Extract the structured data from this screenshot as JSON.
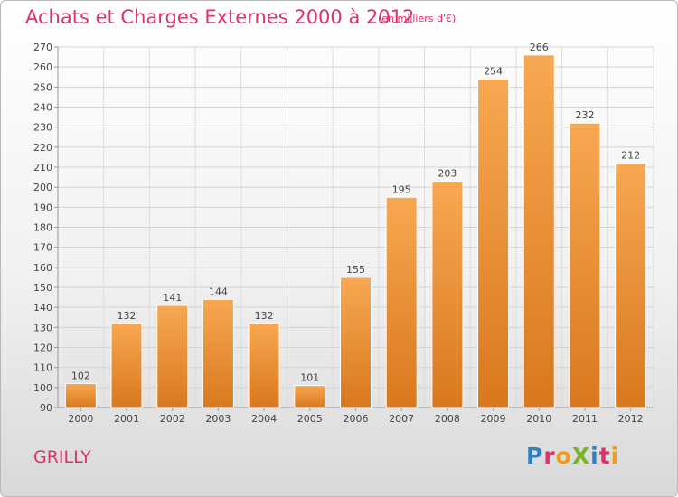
{
  "title": "Achats et Charges Externes 2000 à 2012",
  "unit": "(en milliers d'€)",
  "place": "GRILLY",
  "logo": {
    "text": "ProXiti",
    "colors": [
      "#2f7ec2",
      "#e0306a",
      "#f09a1e",
      "#7ab428",
      "#2f7ec2",
      "#e0306a",
      "#f09a1e"
    ]
  },
  "colors": {
    "bar_light": "#f7a852",
    "bar_dark": "#d9781e",
    "title": "#e0306a"
  },
  "chart_data": {
    "type": "bar",
    "categories": [
      "2000",
      "2001",
      "2002",
      "2003",
      "2004",
      "2005",
      "2006",
      "2007",
      "2008",
      "2009",
      "2010",
      "2011",
      "2012"
    ],
    "values": [
      102,
      132,
      141,
      144,
      132,
      101,
      155,
      195,
      203,
      254,
      266,
      232,
      212
    ],
    "title": "Achats et Charges Externes 2000 à 2012",
    "ylim": [
      90,
      270
    ],
    "yticks": [
      90,
      100,
      110,
      120,
      130,
      140,
      150,
      160,
      170,
      180,
      190,
      200,
      210,
      220,
      230,
      240,
      250,
      260,
      270
    ],
    "grid": true,
    "xlabel": "",
    "ylabel": ""
  }
}
